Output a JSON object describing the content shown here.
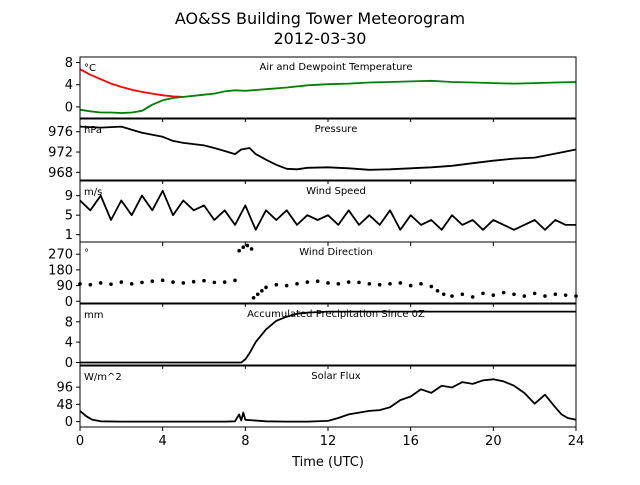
{
  "title_line1": "AO&SS Building Tower Meteorogram",
  "title_line2": "2012-03-30",
  "chart_data": [
    {
      "type": "line",
      "title": "Air and Dewpoint Temperature",
      "unit_label": "°C",
      "ylim": [
        -2,
        9
      ],
      "yticks": [
        "8",
        "4",
        "0"
      ],
      "ytick_values": [
        8,
        4,
        0
      ],
      "series": [
        {
          "color": "#ff0000",
          "x": [
            0,
            0.5,
            1,
            1.5,
            2,
            2.5,
            3,
            3.5,
            4,
            4.5,
            5
          ],
          "y": [
            6.8,
            5.8,
            5.0,
            4.2,
            3.6,
            3.1,
            2.7,
            2.4,
            2.1,
            1.9,
            1.8
          ]
        },
        {
          "color": "#008000",
          "x": [
            0,
            0.5,
            1,
            1.5,
            2,
            2.5,
            3,
            3.5,
            4,
            4.5,
            5,
            5.5,
            6,
            6.5,
            7,
            7.5,
            8,
            9,
            10,
            11,
            12,
            13,
            14,
            15,
            16,
            17,
            18,
            19,
            20,
            21,
            22,
            23,
            24
          ],
          "y": [
            -0.5,
            -0.8,
            -1.0,
            -1.0,
            -1.1,
            -1.0,
            -0.7,
            0.4,
            1.2,
            1.6,
            1.8,
            2.0,
            2.2,
            2.4,
            2.8,
            3.0,
            2.9,
            3.2,
            3.5,
            3.9,
            4.1,
            4.2,
            4.4,
            4.5,
            4.6,
            4.7,
            4.5,
            4.4,
            4.3,
            4.2,
            4.3,
            4.4,
            4.5
          ]
        }
      ]
    },
    {
      "type": "line",
      "title": "Pressure",
      "unit_label": "hPa",
      "ylim": [
        966.5,
        978.5
      ],
      "yticks": [
        "976",
        "972",
        "968"
      ],
      "ytick_values": [
        976,
        972,
        968
      ],
      "series": [
        {
          "color": "#000000",
          "x": [
            0,
            1,
            2,
            2.5,
            3,
            4,
            4.5,
            5,
            6,
            6.5,
            7,
            7.5,
            7.8,
            8.2,
            8.5,
            9,
            9.5,
            10,
            10.5,
            11,
            12,
            13,
            14,
            15,
            16,
            17,
            18,
            19,
            20,
            21,
            22,
            23,
            24
          ],
          "y": [
            977.0,
            976.8,
            977.0,
            976.4,
            975.8,
            975.0,
            974.2,
            973.8,
            973.3,
            972.8,
            972.2,
            971.6,
            972.5,
            972.8,
            971.6,
            970.5,
            969.5,
            968.7,
            968.6,
            968.9,
            969.0,
            968.8,
            968.5,
            968.6,
            968.8,
            969.0,
            969.3,
            969.8,
            970.3,
            970.7,
            970.9,
            971.7,
            972.5
          ]
        }
      ]
    },
    {
      "type": "line",
      "title": "Wind Speed",
      "unit_label": "m/s",
      "ylim": [
        -0.5,
        12
      ],
      "yticks": [
        "9",
        "5",
        "1"
      ],
      "ytick_values": [
        9,
        5,
        1
      ],
      "series": [
        {
          "color": "#000000",
          "x": [
            0,
            0.5,
            1,
            1.5,
            2,
            2.5,
            3,
            3.5,
            4,
            4.5,
            5,
            5.5,
            6,
            6.5,
            7,
            7.5,
            8,
            8.5,
            9,
            9.5,
            10,
            10.5,
            11,
            11.5,
            12,
            12.5,
            13,
            13.5,
            14,
            14.5,
            15,
            15.5,
            16,
            16.5,
            17,
            17.5,
            18,
            18.5,
            19,
            19.5,
            20,
            20.5,
            21,
            21.5,
            22,
            22.5,
            23,
            23.5,
            24
          ],
          "y": [
            8,
            6,
            9,
            4,
            8,
            5,
            9,
            6,
            10,
            5,
            8,
            6,
            7,
            4,
            6,
            3,
            7,
            2,
            6,
            4,
            6,
            3,
            5,
            4,
            5,
            3,
            6,
            3,
            5,
            3,
            6,
            2,
            5,
            3,
            4,
            2,
            5,
            3,
            4,
            2,
            4,
            3,
            2,
            3,
            4,
            2,
            4,
            3,
            3
          ]
        }
      ]
    },
    {
      "type": "scatter",
      "title": "Wind Direction",
      "unit_label": "°",
      "ylim": [
        -10,
        340
      ],
      "yticks": [
        "270",
        "180",
        "90",
        "0"
      ],
      "ytick_values": [
        270,
        180,
        90,
        0
      ],
      "series": [
        {
          "color": "#000000",
          "x": [
            0,
            0.5,
            1,
            1.5,
            2,
            2.5,
            3,
            3.5,
            4,
            4.5,
            5,
            5.5,
            6,
            6.5,
            7,
            7.5,
            7.7,
            7.9,
            8.1,
            8.3,
            8.4,
            8.6,
            8.8,
            9,
            9.5,
            10,
            10.5,
            11,
            11.5,
            12,
            12.5,
            13,
            13.5,
            14,
            14.5,
            15,
            15.5,
            16,
            16.5,
            17,
            17.3,
            17.6,
            18,
            18.5,
            19,
            19.5,
            20,
            20.5,
            21,
            21.5,
            22,
            22.5,
            23,
            23.5,
            24
          ],
          "y": [
            100,
            95,
            105,
            98,
            110,
            100,
            108,
            115,
            120,
            110,
            105,
            112,
            118,
            108,
            110,
            120,
            290,
            310,
            320,
            300,
            20,
            40,
            60,
            80,
            95,
            90,
            100,
            110,
            115,
            105,
            100,
            110,
            108,
            100,
            95,
            100,
            105,
            90,
            100,
            85,
            60,
            40,
            30,
            40,
            25,
            45,
            35,
            50,
            40,
            30,
            45,
            30,
            40,
            35,
            30
          ]
        }
      ]
    },
    {
      "type": "line",
      "title": "Accumulated Precipitation Since 0Z",
      "unit_label": "mm",
      "ylim": [
        -0.5,
        11.5
      ],
      "yticks": [
        "8",
        "4",
        "0"
      ],
      "ytick_values": [
        8,
        4,
        0
      ],
      "series": [
        {
          "color": "#000000",
          "x": [
            0,
            7.8,
            8.0,
            8.2,
            8.5,
            9,
            9.5,
            10,
            10.5,
            11,
            12,
            24
          ],
          "y": [
            0,
            0,
            0.6,
            1.8,
            4.0,
            6.5,
            8.2,
            9.0,
            9.6,
            9.8,
            10.0,
            10.0
          ]
        }
      ]
    },
    {
      "type": "line",
      "title": "Solar Flux",
      "unit_label": "W/m^2",
      "ylim": [
        -15,
        155
      ],
      "yticks": [
        "96",
        "48",
        "0"
      ],
      "ytick_values": [
        96,
        48,
        0
      ],
      "series": [
        {
          "color": "#000000",
          "x": [
            0,
            0.3,
            0.6,
            1,
            2,
            3,
            4,
            5,
            6,
            7,
            7.5,
            7.7,
            7.8,
            7.9,
            8,
            9,
            10,
            11,
            12,
            12.5,
            13,
            13.5,
            14,
            14.5,
            15,
            15.5,
            16,
            16.5,
            17,
            17.5,
            18,
            18.5,
            19,
            19.5,
            20,
            20.5,
            21,
            21.5,
            22,
            22.5,
            23,
            23.3,
            23.6,
            24
          ],
          "y": [
            30,
            15,
            5,
            1,
            0,
            0,
            0,
            0,
            0,
            0,
            1,
            20,
            3,
            25,
            5,
            1,
            0,
            0,
            2,
            10,
            20,
            25,
            30,
            32,
            40,
            60,
            70,
            90,
            80,
            100,
            95,
            110,
            105,
            115,
            118,
            112,
            100,
            80,
            50,
            75,
            40,
            20,
            10,
            5
          ]
        }
      ]
    }
  ],
  "x_axis": {
    "label": "Time (UTC)",
    "ticks": [
      "0",
      "4",
      "8",
      "12",
      "16",
      "20",
      "24"
    ],
    "tick_values": [
      0,
      4,
      8,
      12,
      16,
      20,
      24
    ],
    "xlim": [
      0,
      24
    ]
  }
}
